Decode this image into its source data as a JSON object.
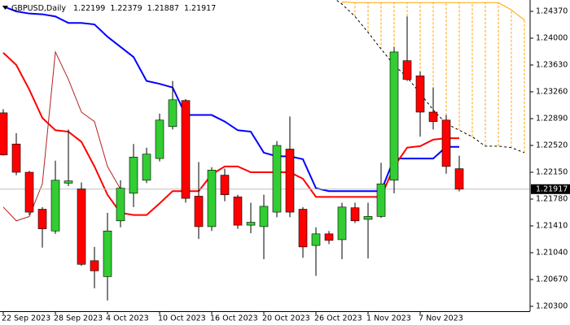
{
  "chart_data": {
    "type": "candlestick",
    "title": "GBPUSD,Daily",
    "categories": [
      "22 Sep 2023",
      null,
      null,
      null,
      "28 Sep 2023",
      null,
      null,
      null,
      "4 Oct 2023",
      null,
      null,
      null,
      "10 Oct 2023",
      null,
      null,
      null,
      "16 Oct 2023",
      null,
      null,
      null,
      "20 Oct 2023",
      null,
      null,
      null,
      "26 Oct 2023",
      null,
      null,
      null,
      "1 Nov 2023",
      null,
      null,
      null,
      "7 Nov 2023",
      null,
      null,
      null,
      null,
      null,
      null,
      null,
      null
    ],
    "open": [
      1.2297,
      1.2254,
      1.2215,
      1.2164,
      1.2134,
      1.22,
      1.2192,
      1.2093,
      1.2071,
      1.2148,
      1.2186,
      1.2204,
      1.2234,
      1.2278,
      1.2314,
      1.2182,
      1.214,
      1.2211,
      1.2181,
      1.2142,
      1.214,
      1.216,
      1.2247,
      1.2164,
      1.2114,
      1.213,
      1.2122,
      1.2166,
      1.215,
      1.2154,
      1.2204,
      1.2369,
      1.2348,
      1.2298,
      1.2287,
      1.22199,
      null,
      null,
      null,
      null,
      null
    ],
    "high": [
      1.2302,
      1.2269,
      1.2217,
      1.2167,
      1.2231,
      1.2274,
      1.2201,
      1.2112,
      1.2159,
      1.2204,
      1.2254,
      1.2249,
      1.2296,
      1.2341,
      1.2316,
      1.2229,
      1.2222,
      1.222,
      1.2184,
      1.2173,
      1.2184,
      1.2258,
      1.2292,
      1.2167,
      1.2139,
      1.2134,
      1.2173,
      1.2173,
      1.2173,
      1.2228,
      1.2388,
      1.243,
      1.2354,
      1.2332,
      1.2294,
      1.22379,
      null,
      null,
      null,
      null,
      null
    ],
    "low": [
      1.2238,
      1.2211,
      1.2156,
      1.2111,
      1.213,
      1.2196,
      1.2086,
      1.2055,
      1.2038,
      1.2139,
      1.2167,
      1.22,
      1.223,
      1.2274,
      1.2173,
      1.2123,
      1.2134,
      1.2175,
      1.2137,
      1.2131,
      1.2095,
      1.2153,
      1.2153,
      1.2097,
      1.2072,
      1.2116,
      1.2095,
      1.2145,
      1.2096,
      1.2152,
      1.2186,
      1.2341,
      1.2264,
      1.2274,
      1.2213,
      1.21887,
      null,
      null,
      null,
      null,
      null
    ],
    "close": [
      1.2239,
      1.2215,
      1.216,
      1.2137,
      1.2204,
      1.2203,
      1.2088,
      1.2079,
      1.2134,
      1.2193,
      1.2236,
      1.224,
      1.2287,
      1.2315,
      1.2179,
      1.214,
      1.2218,
      1.2184,
      1.2142,
      1.2146,
      1.2168,
      1.2252,
      1.216,
      1.2112,
      1.213,
      1.2121,
      1.2167,
      1.2148,
      1.2154,
      1.2199,
      1.2381,
      1.2343,
      1.2298,
      1.2285,
      1.2223,
      1.21917,
      null,
      null,
      null,
      null,
      null
    ],
    "up_color": "#32cd32",
    "down_color": "#ff0000",
    "series": [
      {
        "color": "#0000ff",
        "values": [
          1.2444,
          1.2437,
          1.2434,
          1.2433,
          1.243,
          1.2421,
          1.2421,
          1.2419,
          1.2402,
          1.2388,
          1.2374,
          1.2341,
          1.2337,
          1.2332,
          1.2294,
          1.2294,
          1.2294,
          1.2285,
          1.2273,
          1.2271,
          1.2242,
          1.2237,
          1.2237,
          1.2233,
          1.2193,
          1.2189,
          1.2189,
          1.2189,
          1.2189,
          1.2189,
          1.2234,
          1.2234,
          1.2234,
          1.2234,
          1.225,
          1.225,
          null,
          null,
          null,
          null,
          null
        ]
      },
      {
        "color": "#ff0000",
        "values": [
          1.238,
          1.2363,
          1.2329,
          1.229,
          1.2273,
          1.2271,
          1.2257,
          1.2223,
          1.2184,
          1.2159,
          1.2156,
          1.2156,
          1.2172,
          1.2189,
          1.2189,
          1.2189,
          1.2212,
          1.2223,
          1.2223,
          1.2215,
          1.2215,
          1.2215,
          1.2215,
          1.2206,
          1.2181,
          1.2181,
          1.2181,
          1.2181,
          1.2181,
          1.2181,
          1.2223,
          1.2249,
          1.2251,
          1.226,
          1.2262,
          1.2262,
          null,
          null,
          null,
          null,
          null
        ]
      },
      {
        "color": "#b22222",
        "thin": true,
        "values": [
          1.2167,
          1.2148,
          1.2154,
          1.2199,
          1.2381,
          1.2343,
          1.2298,
          1.2285,
          1.2223,
          1.21917,
          null,
          null,
          null,
          null,
          null,
          null,
          null,
          null,
          null,
          null,
          null,
          null,
          null,
          null,
          null,
          null,
          null,
          null,
          null,
          null,
          null,
          null,
          null,
          null,
          null,
          null,
          null,
          null,
          null,
          null,
          null
        ]
      },
      {
        "color": "#000000",
        "dashed": true,
        "values": [
          null,
          null,
          null,
          null,
          null,
          null,
          null,
          null,
          null,
          null,
          null,
          null,
          null,
          null,
          null,
          null,
          null,
          null,
          null,
          null,
          null,
          null,
          null,
          null,
          null,
          1.246,
          1.2447,
          1.243,
          1.2408,
          1.2385,
          1.2363,
          1.2346,
          1.2324,
          1.2301,
          1.2282,
          1.2273,
          1.2264,
          1.2251,
          1.2251,
          1.2249,
          1.2242
        ]
      },
      {
        "color": "#ffa500",
        "thin": true,
        "values": [
          null,
          null,
          null,
          null,
          null,
          null,
          null,
          null,
          null,
          null,
          null,
          null,
          null,
          null,
          null,
          null,
          null,
          null,
          null,
          null,
          null,
          null,
          null,
          null,
          null,
          null,
          1.245,
          1.2449,
          1.2449,
          1.2449,
          1.2449,
          1.2449,
          1.2449,
          1.2449,
          1.2449,
          1.2449,
          1.2449,
          1.2449,
          1.2449,
          1.2439,
          1.2425
        ]
      }
    ],
    "cloud_color": "#ffa500",
    "ylim": [
      1.20233,
      1.24527
    ],
    "yticks": [
      {
        "value": 1.2437,
        "label": "1.24370"
      },
      {
        "value": 1.24,
        "label": "1.24000"
      },
      {
        "value": 1.2363,
        "label": "1.23630"
      },
      {
        "value": 1.2326,
        "label": "1.23260"
      },
      {
        "value": 1.2289,
        "label": "1.22890"
      },
      {
        "value": 1.2252,
        "label": "1.22520"
      },
      {
        "value": 1.2215,
        "label": "1.22150"
      },
      {
        "value": 1.2178,
        "label": "1.21780"
      },
      {
        "value": 1.2141,
        "label": "1.21410"
      },
      {
        "value": 1.2104,
        "label": "1.21040"
      },
      {
        "value": 1.2067,
        "label": "1.20670"
      },
      {
        "value": 1.203,
        "label": "1.20300"
      }
    ],
    "grid": false
  }
}
